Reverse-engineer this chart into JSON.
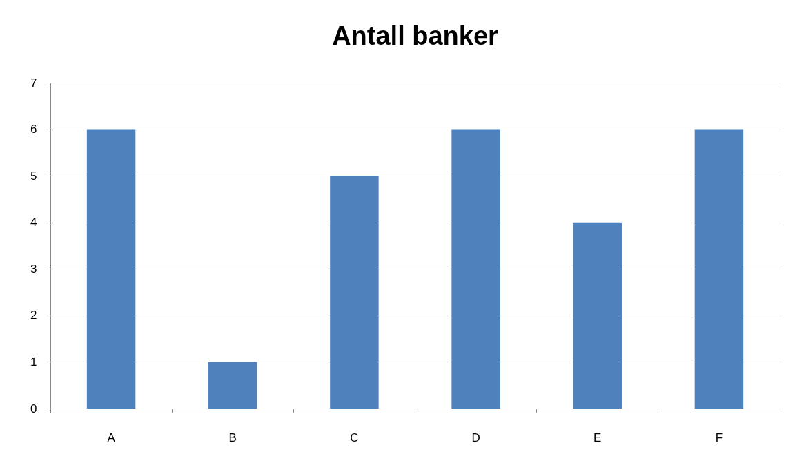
{
  "chart_data": {
    "type": "bar",
    "title": "Antall banker",
    "categories": [
      "A",
      "B",
      "C",
      "D",
      "E",
      "F"
    ],
    "values": [
      6,
      1,
      5,
      6,
      4,
      6
    ],
    "color": "#4f81bd",
    "ylim": [
      0,
      7
    ],
    "yticks": [
      0,
      1,
      2,
      3,
      4,
      5,
      6,
      7
    ],
    "grid": "y"
  }
}
